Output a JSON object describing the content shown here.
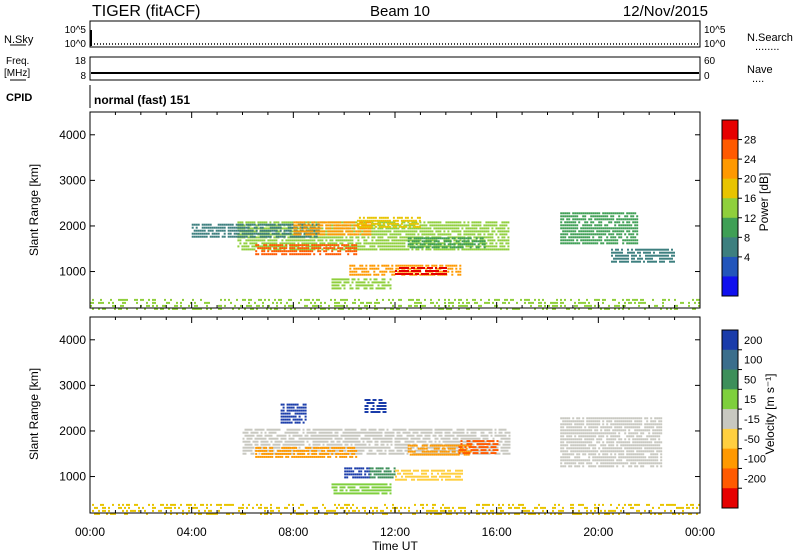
{
  "header": {
    "radar": "TIGER (fitACF)",
    "beam": "Beam 10",
    "date": "12/Nov/2015"
  },
  "mode_panel": {
    "cpid_label": "CPID",
    "cpid_value": "normal (fast) 151"
  },
  "strip_labels": {
    "nsky": "N.Sky",
    "freq": "Freq.",
    "freq_unit": "[MHz]",
    "nsearch": "N.Search",
    "nave": "Nave",
    "nsearch_dots": "........",
    "nave_dots": "....",
    "nsky_ticks": [
      "10^5",
      "10^0"
    ],
    "nsearch_ticks": [
      "10^5",
      "10^0"
    ],
    "freq_ticks": [
      "18",
      "8"
    ],
    "nave_ticks": [
      "60",
      "0"
    ]
  },
  "chart_data": [
    {
      "type": "heatmap",
      "panel": "power",
      "xlabel": "",
      "ylabel": "Slant Range [km]",
      "xlim": [
        0,
        24
      ],
      "ylim": [
        200,
        4500
      ],
      "x_tick_labels": [
        "00:00",
        "04:00",
        "08:00",
        "12:00",
        "16:00",
        "20:00",
        "00:00"
      ],
      "y_ticks": [
        1000,
        2000,
        3000,
        4000
      ],
      "colorbar": {
        "label": "Power [dB]",
        "tick_labels": [
          "28",
          "24",
          "20",
          "16",
          "12",
          "8",
          "4"
        ],
        "colors": [
          "#e60000",
          "#ff5a00",
          "#ff9900",
          "#e8c400",
          "#8fcf3c",
          "#3f9f55",
          "#3d7f7f",
          "#2255bb",
          "#1010ee"
        ]
      },
      "regions": [
        {
          "t0": 5.8,
          "t1": 16.5,
          "r0": 1500,
          "r1": 2100,
          "color": "#8fcf3c"
        },
        {
          "t0": 4.0,
          "t1": 9.0,
          "r0": 1750,
          "r1": 2050,
          "color": "#3d7f7f"
        },
        {
          "t0": 6.5,
          "t1": 10.5,
          "r0": 1400,
          "r1": 1600,
          "color": "#ff5a00"
        },
        {
          "t0": 8.0,
          "t1": 11.0,
          "r0": 1800,
          "r1": 2100,
          "color": "#ff9900"
        },
        {
          "t0": 10.5,
          "t1": 13.0,
          "r0": 1950,
          "r1": 2200,
          "color": "#e8c400"
        },
        {
          "t0": 12.5,
          "t1": 15.5,
          "r0": 1500,
          "r1": 1750,
          "color": "#3f9f55"
        },
        {
          "t0": 10.2,
          "t1": 14.6,
          "r0": 950,
          "r1": 1150,
          "color": "#ff9900"
        },
        {
          "t0": 12.0,
          "t1": 14.0,
          "r0": 950,
          "r1": 1100,
          "color": "#e60000"
        },
        {
          "t0": 9.5,
          "t1": 11.8,
          "r0": 650,
          "r1": 850,
          "color": "#8fcf3c"
        },
        {
          "t0": 18.5,
          "t1": 21.5,
          "r0": 1600,
          "r1": 2300,
          "color": "#3f9f55"
        },
        {
          "t0": 20.5,
          "t1": 23.0,
          "r0": 1200,
          "r1": 1500,
          "color": "#3d7f7f"
        },
        {
          "t0": 0.0,
          "t1": 24.0,
          "r0": 200,
          "r1": 400,
          "color": "#8fcf3c"
        }
      ]
    },
    {
      "type": "heatmap",
      "panel": "velocity",
      "xlabel": "Time UT",
      "ylabel": "Slant Range [km]",
      "xlim": [
        0,
        24
      ],
      "ylim": [
        200,
        4500
      ],
      "x_tick_labels": [
        "00:00",
        "04:00",
        "08:00",
        "12:00",
        "16:00",
        "20:00",
        "00:00"
      ],
      "y_ticks": [
        1000,
        2000,
        3000,
        4000
      ],
      "colorbar": {
        "label": "Velocity [m s⁻¹]",
        "tick_labels": [
          "200",
          "100",
          "50",
          "15",
          "-15",
          "-50",
          "-100",
          "-200"
        ],
        "colors": [
          "#1a3caa",
          "#3b6e8c",
          "#3d8f5a",
          "#7ecf3c",
          "#c8c8c0",
          "#ffcf40",
          "#ff9900",
          "#ff5a00",
          "#e60000"
        ]
      },
      "regions": [
        {
          "t0": 6.0,
          "t1": 16.5,
          "r0": 1500,
          "r1": 2050,
          "color": "#c8c8c0"
        },
        {
          "t0": 6.5,
          "t1": 10.5,
          "r0": 1450,
          "r1": 1650,
          "color": "#ff9900"
        },
        {
          "t0": 12.5,
          "t1": 15.0,
          "r0": 1450,
          "r1": 1700,
          "color": "#ff9900"
        },
        {
          "t0": 14.5,
          "t1": 16.0,
          "r0": 1500,
          "r1": 1800,
          "color": "#ff5a00"
        },
        {
          "t0": 10.0,
          "t1": 11.0,
          "r0": 1000,
          "r1": 1200,
          "color": "#1a3caa"
        },
        {
          "t0": 11.0,
          "t1": 12.0,
          "r0": 1000,
          "r1": 1200,
          "color": "#3d8f5a"
        },
        {
          "t0": 12.0,
          "t1": 14.6,
          "r0": 950,
          "r1": 1150,
          "color": "#ffcf40"
        },
        {
          "t0": 9.5,
          "t1": 11.8,
          "r0": 650,
          "r1": 850,
          "color": "#7ecf3c"
        },
        {
          "t0": 7.5,
          "t1": 8.5,
          "r0": 2200,
          "r1": 2600,
          "color": "#1a3caa"
        },
        {
          "t0": 10.8,
          "t1": 11.6,
          "r0": 2400,
          "r1": 2700,
          "color": "#1a3caa"
        },
        {
          "t0": 18.5,
          "t1": 22.5,
          "r0": 1200,
          "r1": 2300,
          "color": "#c8c8c0"
        },
        {
          "t0": 0.0,
          "t1": 24.0,
          "r0": 200,
          "r1": 400,
          "color": "#e8c400"
        }
      ]
    }
  ]
}
